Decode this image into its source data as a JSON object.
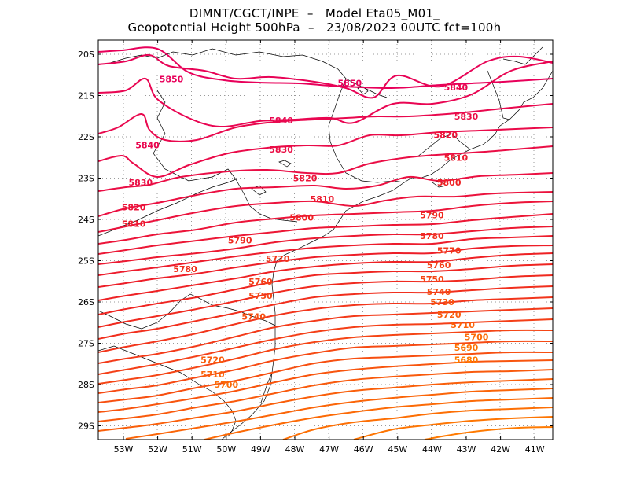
{
  "header": {
    "line1": "DIMNT/CGCT/INPE  –   Model Eta05_M01_",
    "line2": "Geopotential Height 500hPa  –   23/08/2023 00UTC fct=100h"
  },
  "axes": {
    "lat_labels": [
      "20S",
      "21S",
      "22S",
      "23S",
      "24S",
      "25S",
      "26S",
      "27S",
      "28S",
      "29S"
    ],
    "lon_labels": [
      "53W",
      "52W",
      "51W",
      "50W",
      "49W",
      "48W",
      "47W",
      "46W",
      "45W",
      "44W",
      "43W",
      "42W",
      "41W"
    ]
  },
  "contour_labels": [
    {
      "text": "5850",
      "lon": -51.6,
      "lat": -20.6
    },
    {
      "text": "5850",
      "lon": -46.4,
      "lat": -20.7
    },
    {
      "text": "5840",
      "lon": -43.3,
      "lat": -20.8
    },
    {
      "text": "5840",
      "lon": -48.4,
      "lat": -21.6
    },
    {
      "text": "5840",
      "lon": -52.3,
      "lat": -22.2
    },
    {
      "text": "5830",
      "lon": -43.0,
      "lat": -21.5
    },
    {
      "text": "5830",
      "lon": -48.4,
      "lat": -22.3
    },
    {
      "text": "5830",
      "lon": -52.5,
      "lat": -23.1
    },
    {
      "text": "5820",
      "lon": -43.6,
      "lat": -21.95
    },
    {
      "text": "5820",
      "lon": -47.7,
      "lat": -23.0
    },
    {
      "text": "5820",
      "lon": -52.7,
      "lat": -23.7
    },
    {
      "text": "5810",
      "lon": -43.3,
      "lat": -22.5
    },
    {
      "text": "5810",
      "lon": -47.2,
      "lat": -23.5
    },
    {
      "text": "5810",
      "lon": -52.7,
      "lat": -24.1
    },
    {
      "text": "5800",
      "lon": -43.5,
      "lat": -23.1
    },
    {
      "text": "5800",
      "lon": -47.8,
      "lat": -23.95
    },
    {
      "text": "5790",
      "lon": -44.0,
      "lat": -23.9
    },
    {
      "text": "5790",
      "lon": -49.6,
      "lat": -24.5
    },
    {
      "text": "5780",
      "lon": -44.0,
      "lat": -24.4
    },
    {
      "text": "5780",
      "lon": -51.2,
      "lat": -25.2
    },
    {
      "text": "5770",
      "lon": -43.5,
      "lat": -24.75
    },
    {
      "text": "5770",
      "lon": -48.5,
      "lat": -24.95
    },
    {
      "text": "5760",
      "lon": -43.8,
      "lat": -25.1
    },
    {
      "text": "5760",
      "lon": -49.0,
      "lat": -25.5
    },
    {
      "text": "5750",
      "lon": -44.0,
      "lat": -25.45
    },
    {
      "text": "5750",
      "lon": -49.0,
      "lat": -25.85
    },
    {
      "text": "5740",
      "lon": -43.8,
      "lat": -25.75
    },
    {
      "text": "5740",
      "lon": -49.2,
      "lat": -26.35
    },
    {
      "text": "5730",
      "lon": -43.7,
      "lat": -26.0
    },
    {
      "text": "5720",
      "lon": -43.5,
      "lat": -26.3
    },
    {
      "text": "5720",
      "lon": -50.4,
      "lat": -27.4
    },
    {
      "text": "5710",
      "lon": -43.1,
      "lat": -26.55
    },
    {
      "text": "5710",
      "lon": -50.4,
      "lat": -27.75
    },
    {
      "text": "5700",
      "lon": -42.7,
      "lat": -26.85
    },
    {
      "text": "5700",
      "lon": -50.0,
      "lat": -28.0
    },
    {
      "text": "5690",
      "lon": -43.0,
      "lat": -27.1
    },
    {
      "text": "5680",
      "lon": -43.0,
      "lat": -27.4
    }
  ],
  "colors": {
    "high": "#e8005a",
    "mid": "#ee2222",
    "low": "#ff7a00",
    "coast": "#000000",
    "grid": "#999999"
  }
}
